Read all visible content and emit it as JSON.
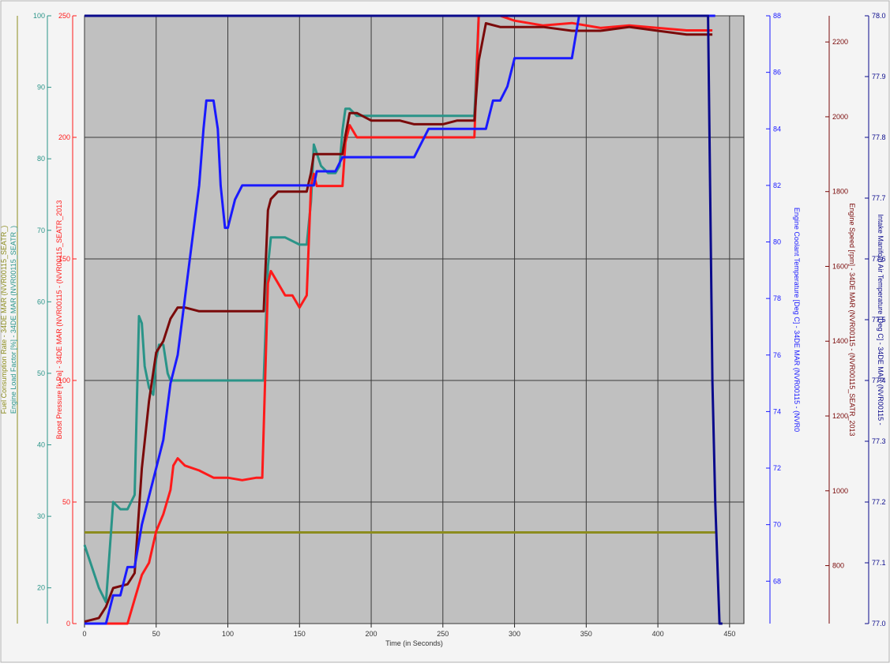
{
  "chart_data": {
    "type": "line",
    "title": "",
    "xlabel": "Time (in Seconds)",
    "xlim": [
      0,
      460
    ],
    "x_ticks": [
      "0",
      "50",
      "100",
      "150",
      "200",
      "250",
      "300",
      "350",
      "400",
      "450"
    ],
    "grid": true,
    "colors": {
      "plot_bg": "#c0c0c0",
      "grid": "#3a3a3a",
      "olive": "#8c8c1e",
      "teal": "#2a9488",
      "red": "#ff1a1a",
      "darkred": "#7a0a0a",
      "blue": "#1a1aff",
      "navy": "#0a0a8c"
    },
    "axes": [
      {
        "id": "fuel",
        "side": "left",
        "label": "Fuel Consumption Rate - 34DE MAR (NVR00115_SEATR_)",
        "color": "#8c8c1e",
        "ylim": [
          0,
          100
        ],
        "ticks": [],
        "tick_labels": []
      },
      {
        "id": "load",
        "side": "left",
        "label": "Engine Load Factor [%] - 34DE MAR (NVR00115_SEATR_)",
        "color": "#2a9488",
        "ylim": [
          15,
          100
        ],
        "ticks": [
          20,
          30,
          40,
          50,
          60,
          70,
          80,
          90,
          100
        ],
        "tick_labels": [
          "20",
          "30",
          "40",
          "50",
          "60",
          "70",
          "80",
          "90",
          "100"
        ]
      },
      {
        "id": "boost",
        "side": "left",
        "label": "Boost Pressure [k Pa] - 34DE MAR (NVR00115 - (NVR00115_SEATR_2013",
        "color": "#ff1a1a",
        "ylim": [
          0,
          250
        ],
        "ticks": [
          0,
          50,
          100,
          150,
          200,
          250
        ],
        "tick_labels": [
          "0",
          "50",
          "100",
          "150",
          "200",
          "250"
        ]
      },
      {
        "id": "coolant",
        "side": "right",
        "label": "Engine Coolant Temperature [Deg C] - 34DE MAR (NVR00115 - (NVR0",
        "color": "#1a1aff",
        "ylim": [
          66.5,
          88
        ],
        "ticks": [
          68,
          70,
          72,
          74,
          76,
          78,
          80,
          82,
          84,
          86,
          88
        ],
        "tick_labels": [
          "68",
          "70",
          "72",
          "74",
          "76",
          "78",
          "80",
          "82",
          "84",
          "86",
          "88"
        ]
      },
      {
        "id": "speed",
        "side": "right",
        "label": "Engine Speed [rpm] - 34DE MAR (NVR00115 - (NVR00115_SEATR_2013",
        "color": "#7a0a0a",
        "ylim": [
          645,
          2270
        ],
        "ticks": [
          800,
          1000,
          1200,
          1400,
          1600,
          1800,
          2000,
          2200
        ],
        "tick_labels": [
          "800",
          "1000",
          "1200",
          "1400",
          "1600",
          "1800",
          "2000",
          "2200"
        ]
      },
      {
        "id": "intake",
        "side": "right",
        "label": "Intake Manifold Air Temperature [Deg C] - 34DE MAR (NVR00115 -",
        "color": "#0a0a8c",
        "ylim": [
          77.0,
          78.0
        ],
        "ticks": [
          77.0,
          77.1,
          77.2,
          77.3,
          77.4,
          77.5,
          77.6,
          77.7,
          77.8,
          77.9,
          78.0
        ],
        "tick_labels": [
          "77.0",
          "77.1",
          "77.2",
          "77.3",
          "77.4",
          "77.5",
          "77.6",
          "77.7",
          "77.8",
          "77.9",
          "78.0"
        ]
      }
    ],
    "series": [
      {
        "axis": "fuel",
        "color": "#8c8c1e",
        "x": [
          0,
          440
        ],
        "y": [
          15,
          15
        ]
      },
      {
        "axis": "load",
        "color": "#2a9488",
        "x": [
          0,
          5,
          10,
          15,
          20,
          25,
          30,
          35,
          38,
          40,
          42,
          45,
          48,
          50,
          52,
          55,
          58,
          60,
          62,
          65,
          70,
          80,
          90,
          100,
          110,
          120,
          125,
          128,
          130,
          135,
          140,
          150,
          155,
          158,
          160,
          165,
          170,
          175,
          178,
          180,
          182,
          185,
          190,
          200,
          210,
          220,
          230,
          240,
          250,
          260,
          270,
          272,
          275,
          280,
          300,
          320,
          340,
          360,
          380,
          400,
          420,
          438
        ],
        "y": [
          26,
          23,
          20,
          18,
          32,
          31,
          31,
          33,
          58,
          57,
          51,
          48,
          47,
          52,
          54,
          54,
          50,
          49,
          49,
          49,
          49,
          49,
          49,
          49,
          49,
          49,
          49,
          65,
          69,
          69,
          69,
          68,
          68,
          74,
          82,
          79,
          78,
          78,
          79,
          84,
          87,
          87,
          86,
          86,
          86,
          86,
          86,
          86,
          86,
          86,
          86,
          86,
          100,
          100,
          100,
          100,
          100,
          100,
          100,
          100,
          100,
          100
        ]
      },
      {
        "axis": "boost",
        "color": "#ff1a1a",
        "x": [
          0,
          30,
          35,
          40,
          45,
          50,
          55,
          60,
          62,
          65,
          70,
          80,
          90,
          100,
          110,
          120,
          124,
          126,
          128,
          130,
          135,
          140,
          145,
          150,
          155,
          158,
          160,
          162,
          165,
          170,
          175,
          178,
          180,
          182,
          185,
          190,
          200,
          210,
          220,
          230,
          240,
          250,
          260,
          270,
          272,
          275,
          280,
          290,
          300,
          320,
          340,
          360,
          380,
          400,
          420,
          438
        ],
        "y": [
          0,
          0,
          10,
          20,
          25,
          38,
          45,
          55,
          65,
          68,
          65,
          63,
          60,
          60,
          59,
          60,
          60,
          100,
          140,
          145,
          140,
          135,
          135,
          130,
          135,
          180,
          185,
          180,
          180,
          180,
          180,
          180,
          180,
          198,
          205,
          200,
          200,
          200,
          200,
          200,
          200,
          200,
          200,
          200,
          200,
          250,
          250,
          250,
          248,
          246,
          247,
          245,
          246,
          245,
          244,
          244
        ]
      },
      {
        "axis": "speed",
        "color": "#7a0a0a",
        "x": [
          0,
          10,
          15,
          20,
          30,
          35,
          40,
          45,
          50,
          55,
          60,
          65,
          70,
          80,
          90,
          100,
          110,
          120,
          125,
          128,
          130,
          135,
          140,
          150,
          155,
          158,
          160,
          165,
          170,
          175,
          178,
          180,
          182,
          185,
          190,
          200,
          210,
          220,
          230,
          240,
          250,
          260,
          270,
          272,
          275,
          280,
          290,
          300,
          320,
          340,
          360,
          380,
          400,
          420,
          438
        ],
        "y": [
          650,
          660,
          690,
          740,
          750,
          780,
          1060,
          1240,
          1370,
          1400,
          1460,
          1490,
          1490,
          1480,
          1480,
          1480,
          1480,
          1480,
          1480,
          1750,
          1780,
          1800,
          1800,
          1800,
          1800,
          1850,
          1900,
          1900,
          1900,
          1900,
          1900,
          1900,
          1950,
          2010,
          2010,
          1990,
          1990,
          1990,
          1980,
          1980,
          1980,
          1990,
          1990,
          1990,
          2150,
          2250,
          2240,
          2240,
          2240,
          2230,
          2230,
          2240,
          2230,
          2220,
          2220
        ]
      },
      {
        "axis": "coolant",
        "color": "#1a1aff",
        "x": [
          0,
          15,
          20,
          25,
          30,
          35,
          40,
          45,
          50,
          55,
          60,
          65,
          70,
          75,
          80,
          83,
          85,
          88,
          90,
          93,
          95,
          98,
          100,
          105,
          110,
          120,
          140,
          160,
          162,
          165,
          170,
          175,
          180,
          185,
          190,
          200,
          210,
          220,
          230,
          240,
          250,
          260,
          270,
          275,
          280,
          285,
          290,
          295,
          300,
          310,
          320,
          330,
          340,
          345,
          350,
          400,
          440
        ],
        "y": [
          66.5,
          66.5,
          67.5,
          67.5,
          68.5,
          68.5,
          70,
          71,
          72,
          73,
          75,
          76,
          78,
          80,
          82,
          84,
          85,
          85,
          85,
          84,
          82,
          80.5,
          80.5,
          81.5,
          82,
          82,
          82,
          82,
          82.5,
          82.5,
          82.5,
          82.5,
          83,
          83,
          83,
          83,
          83,
          83,
          83,
          84,
          84,
          84,
          84,
          84,
          84,
          85,
          85,
          85.5,
          86.5,
          86.5,
          86.5,
          86.5,
          86.5,
          88,
          88,
          88,
          88
        ]
      },
      {
        "axis": "intake",
        "color": "#0a0a8c",
        "x": [
          0,
          435,
          437,
          438,
          440,
          443,
          445
        ],
        "y": [
          78.0,
          78.0,
          77.6,
          77.4,
          77.2,
          77.0,
          77.0
        ]
      }
    ]
  }
}
